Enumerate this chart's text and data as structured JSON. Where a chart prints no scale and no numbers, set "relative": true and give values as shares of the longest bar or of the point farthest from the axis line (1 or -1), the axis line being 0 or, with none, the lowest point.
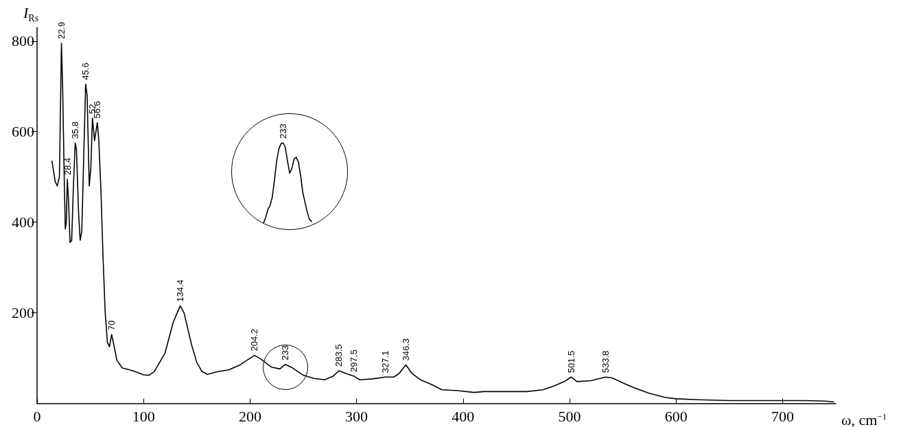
{
  "chart_data": [
    {
      "type": "line",
      "xlabel": "ω, cm$^{−1}$",
      "ylabel": "I$_{Rs}$",
      "xlim": [
        0,
        750
      ],
      "xticks": [
        0,
        100,
        200,
        300,
        400,
        500,
        600,
        700
      ],
      "ylim": [
        0,
        830
      ],
      "yticks": [
        200,
        400,
        600,
        800
      ],
      "series": [
        {
          "color": "#000000",
          "x": [
            14,
            17,
            19,
            21,
            22.9,
            24,
            25.5,
            26.5,
            27.5,
            28.4,
            29.5,
            31,
            32.5,
            34,
            35.8,
            37,
            39,
            40.5,
            42,
            44,
            45.6,
            47,
            49,
            50.5,
            52,
            54,
            56.6,
            58,
            60,
            62,
            64,
            66,
            68,
            70,
            72,
            75,
            80,
            90,
            100,
            105,
            110,
            120,
            128,
            134.4,
            138,
            145,
            150,
            155,
            160,
            170,
            180,
            190,
            195,
            204.2,
            210,
            220,
            228,
            233,
            240,
            250,
            260,
            270,
            278,
            283.5,
            290,
            297.5,
            303,
            315,
            327.1,
            335,
            340,
            346.3,
            352,
            360,
            370,
            380,
            395,
            410,
            420,
            440,
            460,
            475,
            485,
            495,
            501.5,
            507,
            520,
            533.8,
            540,
            550,
            560,
            575,
            590,
            600,
            620,
            650,
            680,
            700,
            720,
            740,
            748
          ],
          "values": [
            535,
            490,
            480,
            500,
            795,
            700,
            500,
            385,
            400,
            495,
            450,
            355,
            360,
            470,
            575,
            560,
            420,
            360,
            380,
            560,
            705,
            680,
            480,
            520,
            630,
            580,
            620,
            580,
            470,
            320,
            200,
            135,
            125,
            152,
            130,
            95,
            78,
            72,
            63,
            62,
            70,
            110,
            180,
            215,
            200,
            130,
            90,
            70,
            64,
            70,
            74,
            84,
            92,
            106,
            98,
            80,
            76,
            86,
            78,
            62,
            55,
            52,
            60,
            72,
            66,
            60,
            52,
            54,
            58,
            58,
            66,
            85,
            66,
            52,
            42,
            30,
            28,
            24,
            26,
            26,
            26,
            30,
            38,
            48,
            58,
            48,
            50,
            58,
            56,
            45,
            35,
            22,
            13,
            10,
            8,
            6,
            6,
            6,
            6,
            5,
            3
          ]
        }
      ],
      "annotations": [
        {
          "text": "22.9",
          "x": 22.9,
          "y": 795
        },
        {
          "text": "28.4",
          "x": 28.4,
          "y": 495
        },
        {
          "text": "35.8",
          "x": 35.8,
          "y": 575
        },
        {
          "text": "45.6",
          "x": 45.6,
          "y": 705
        },
        {
          "text": "52",
          "x": 52,
          "y": 630
        },
        {
          "text": "56.6",
          "x": 56.6,
          "y": 620
        },
        {
          "text": "70",
          "x": 70,
          "y": 152
        },
        {
          "text": "134.4",
          "x": 134.4,
          "y": 215
        },
        {
          "text": "204.2",
          "x": 204.2,
          "y": 106
        },
        {
          "text": "233",
          "x": 233,
          "y": 86
        },
        {
          "text": "283.5",
          "x": 283.5,
          "y": 72
        },
        {
          "text": "297.5",
          "x": 297.5,
          "y": 60
        },
        {
          "text": "327.1",
          "x": 327.1,
          "y": 58
        },
        {
          "text": "346.3",
          "x": 346.3,
          "y": 85
        },
        {
          "text": "501.5",
          "x": 501.5,
          "y": 58
        },
        {
          "text": "533.8",
          "x": 533.8,
          "y": 58
        }
      ]
    },
    {
      "type": "line",
      "relative": true,
      "categories": [
        null,
        null,
        null,
        null,
        null,
        null,
        null,
        null,
        null,
        null,
        null,
        null,
        null,
        null,
        null,
        null,
        null,
        null,
        null,
        null,
        null,
        null,
        null
      ],
      "series": [
        {
          "color": "#000000",
          "values": [
            0,
            0.07,
            0.17,
            0.22,
            0.32,
            0.53,
            0.77,
            0.92,
            0.99,
            1,
            0.94,
            0.77,
            0.62,
            0.68,
            0.8,
            0.82,
            0.76,
            0.59,
            0.38,
            0.26,
            0.14,
            0.05,
            0.02
          ]
        }
      ],
      "annotations": [
        "233"
      ]
    }
  ]
}
